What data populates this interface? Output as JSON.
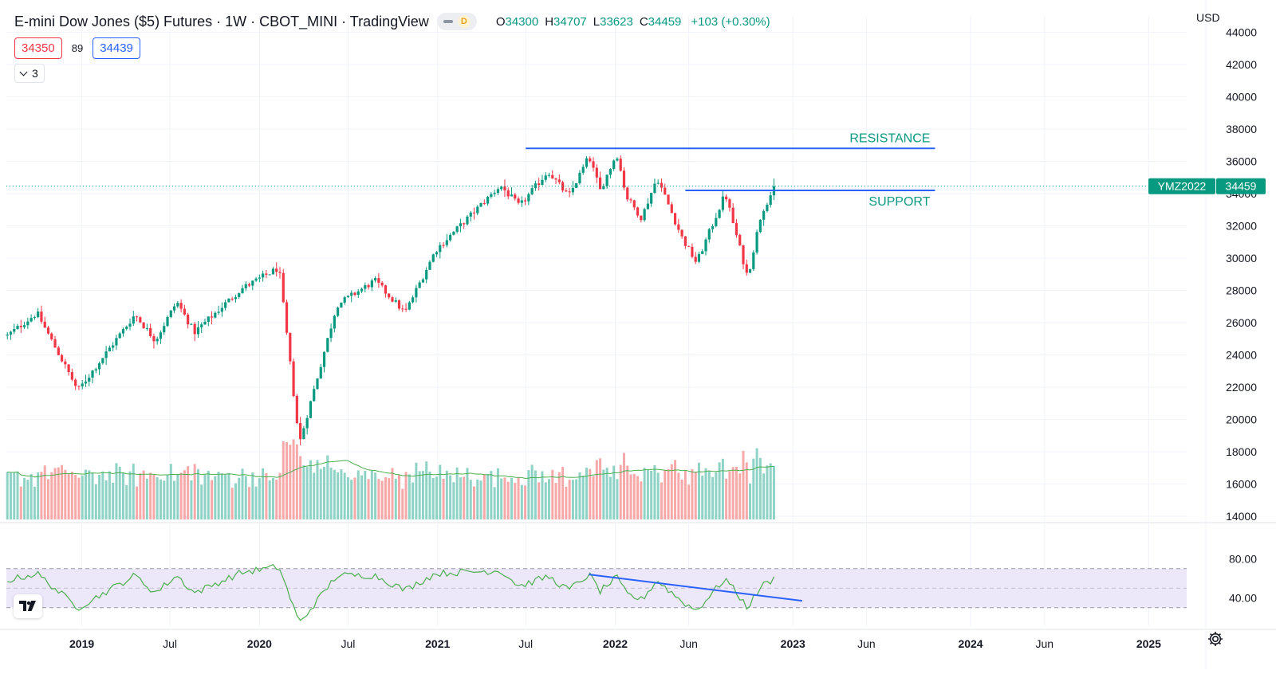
{
  "header": {
    "title": "E-mini Dow Jones ($5) Futures · 1W · CBOT_MINI · TradingView",
    "market_status_icon": "dash-icon",
    "delayed_badge": "D",
    "ohlc": {
      "o_label": "O",
      "o": "34300",
      "h_label": "H",
      "h": "34707",
      "l_label": "L",
      "l": "33623",
      "c_label": "C",
      "c": "34459",
      "change": "+103 (+0.30%)"
    }
  },
  "quote": {
    "bid": "34350",
    "spread": "89",
    "ask": "34439"
  },
  "indicators_toggle": {
    "count": "3"
  },
  "currency": "USD",
  "colors": {
    "up": "#089981",
    "down": "#f23645",
    "vol_up": "#8fd3c6",
    "vol_down": "#f7a9a9",
    "ma_line": "#4caf50",
    "rsi_line": "#4caf50",
    "trendline": "#2962ff",
    "rsi_band": "#ede7fa",
    "label_text": "#089981"
  },
  "price_tag": {
    "symbol": "YMZ2022",
    "price": "34459"
  },
  "chart_data": {
    "type": "candlestick",
    "title": "E-mini Dow Jones ($5) Futures · 1W · CBOT_MINI",
    "interval": "1W",
    "x_range": [
      "2018-07-30",
      "2025-03-20"
    ],
    "ylim": [
      13000,
      44500
    ],
    "y_scale": "linear",
    "y_ticks": [
      14000,
      16000,
      18000,
      20000,
      22000,
      24000,
      26000,
      28000,
      30000,
      32000,
      34000,
      36000,
      38000,
      40000,
      42000,
      44000
    ],
    "x_tick_labels": [
      {
        "date": "2019-01-01",
        "label": "2019",
        "bold": true
      },
      {
        "date": "2019-07-01",
        "label": "Jul",
        "bold": false
      },
      {
        "date": "2020-01-01",
        "label": "2020",
        "bold": true
      },
      {
        "date": "2020-07-01",
        "label": "Jul",
        "bold": false
      },
      {
        "date": "2021-01-01",
        "label": "2021",
        "bold": true
      },
      {
        "date": "2021-07-01",
        "label": "Jul",
        "bold": false
      },
      {
        "date": "2022-01-01",
        "label": "2022",
        "bold": true
      },
      {
        "date": "2022-06-01",
        "label": "Jun",
        "bold": false
      },
      {
        "date": "2023-01-01",
        "label": "2023",
        "bold": true
      },
      {
        "date": "2023-06-01",
        "label": "Jun",
        "bold": false
      },
      {
        "date": "2024-01-01",
        "label": "2024",
        "bold": true
      },
      {
        "date": "2024-06-01",
        "label": "Jun",
        "bold": false
      },
      {
        "date": "2025-01-01",
        "label": "2025",
        "bold": true
      }
    ],
    "last_price": 34459,
    "approx_close_path": [
      {
        "date": "2018-08-01",
        "close": 25200
      },
      {
        "date": "2018-10-01",
        "close": 26600
      },
      {
        "date": "2018-12-24",
        "close": 21800
      },
      {
        "date": "2019-04-20",
        "close": 26500
      },
      {
        "date": "2019-06-01",
        "close": 24900
      },
      {
        "date": "2019-07-15",
        "close": 27300
      },
      {
        "date": "2019-08-20",
        "close": 25400
      },
      {
        "date": "2019-11-25",
        "close": 28100
      },
      {
        "date": "2020-02-10",
        "close": 29400
      },
      {
        "date": "2020-03-23",
        "close": 18500
      },
      {
        "date": "2020-06-08",
        "close": 27100
      },
      {
        "date": "2020-08-25",
        "close": 28600
      },
      {
        "date": "2020-10-26",
        "close": 26600
      },
      {
        "date": "2020-12-28",
        "close": 30500
      },
      {
        "date": "2021-05-10",
        "close": 34500
      },
      {
        "date": "2021-06-18",
        "close": 33200
      },
      {
        "date": "2021-08-16",
        "close": 35400
      },
      {
        "date": "2021-09-27",
        "close": 33800
      },
      {
        "date": "2021-11-08",
        "close": 36300
      },
      {
        "date": "2021-12-01",
        "close": 34200
      },
      {
        "date": "2022-01-04",
        "close": 36500
      },
      {
        "date": "2022-01-24",
        "close": 33800
      },
      {
        "date": "2022-02-24",
        "close": 32500
      },
      {
        "date": "2022-03-28",
        "close": 35000
      },
      {
        "date": "2022-05-19",
        "close": 31200
      },
      {
        "date": "2022-06-17",
        "close": 29700
      },
      {
        "date": "2022-08-15",
        "close": 34000
      },
      {
        "date": "2022-09-30",
        "close": 28800
      },
      {
        "date": "2022-10-28",
        "close": 32800
      },
      {
        "date": "2022-11-25",
        "close": 34459
      }
    ],
    "volume": {
      "ylim_relative": true,
      "ma_shown": true
    },
    "annotations": [
      {
        "type": "horizontal_line",
        "label": "RESISTANCE",
        "y": 36800,
        "x_start": "2021-07-01",
        "x_end": "2023-10-20"
      },
      {
        "type": "horizontal_line",
        "label": "SUPPORT",
        "y": 34200,
        "x_start": "2022-05-25",
        "x_end": "2023-10-20"
      }
    ],
    "rsi": {
      "y_ticks": [
        40,
        80
      ],
      "y_tick_labels": [
        "40.00",
        "80.00"
      ],
      "band": [
        30,
        70
      ],
      "ylim": [
        10,
        95
      ],
      "approx_path": [
        {
          "date": "2018-08-01",
          "value": 58
        },
        {
          "date": "2018-10-01",
          "value": 65
        },
        {
          "date": "2018-12-24",
          "value": 30
        },
        {
          "date": "2019-04-20",
          "value": 63
        },
        {
          "date": "2019-06-01",
          "value": 45
        },
        {
          "date": "2019-07-15",
          "value": 63
        },
        {
          "date": "2019-08-20",
          "value": 45
        },
        {
          "date": "2019-11-25",
          "value": 66
        },
        {
          "date": "2020-02-10",
          "value": 72
        },
        {
          "date": "2020-03-23",
          "value": 14
        },
        {
          "date": "2020-06-08",
          "value": 63
        },
        {
          "date": "2020-08-25",
          "value": 63
        },
        {
          "date": "2020-10-26",
          "value": 48
        },
        {
          "date": "2020-12-28",
          "value": 65
        },
        {
          "date": "2021-05-10",
          "value": 68
        },
        {
          "date": "2021-06-18",
          "value": 52
        },
        {
          "date": "2021-08-16",
          "value": 62
        },
        {
          "date": "2021-09-27",
          "value": 48
        },
        {
          "date": "2021-11-08",
          "value": 64
        },
        {
          "date": "2021-12-01",
          "value": 47
        },
        {
          "date": "2022-01-04",
          "value": 61
        },
        {
          "date": "2022-01-24",
          "value": 44
        },
        {
          "date": "2022-02-24",
          "value": 38
        },
        {
          "date": "2022-03-28",
          "value": 58
        },
        {
          "date": "2022-05-19",
          "value": 36
        },
        {
          "date": "2022-06-17",
          "value": 27
        },
        {
          "date": "2022-08-15",
          "value": 60
        },
        {
          "date": "2022-09-30",
          "value": 30
        },
        {
          "date": "2022-10-28",
          "value": 52
        },
        {
          "date": "2022-11-25",
          "value": 60
        }
      ],
      "trendline": {
        "start": {
          "date": "2021-11-08",
          "value": 64
        },
        "end": {
          "date": "2023-01-20",
          "value": 37
        }
      }
    }
  }
}
